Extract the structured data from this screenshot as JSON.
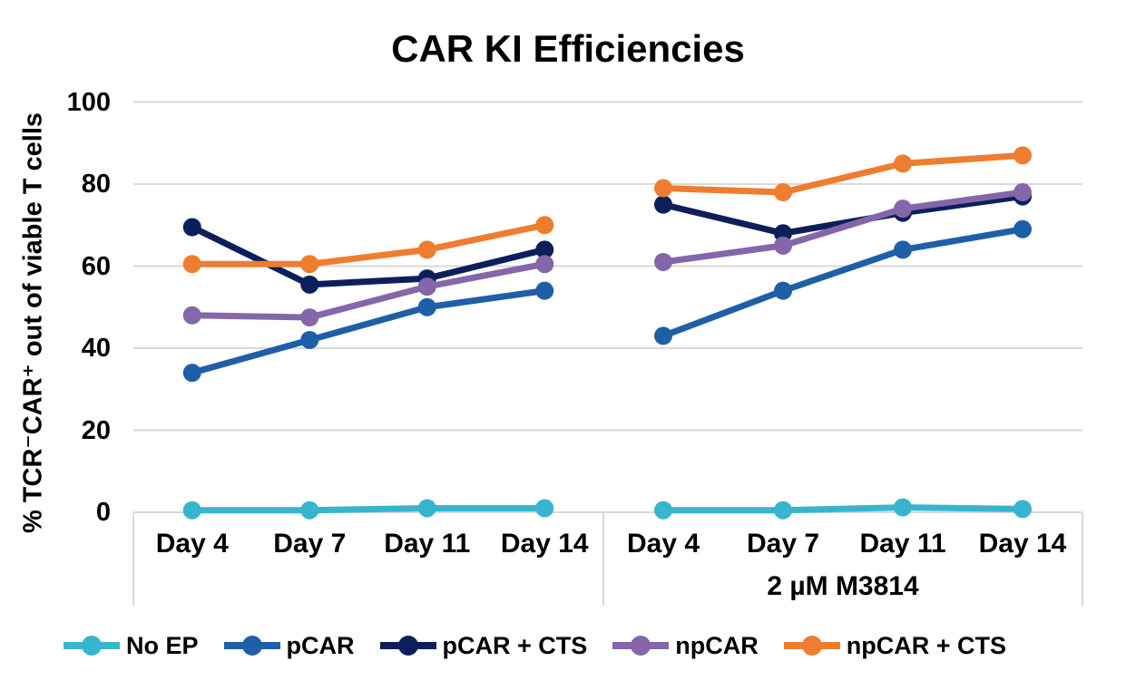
{
  "chart_data": {
    "type": "line",
    "title": "CAR KI Efficiencies",
    "ylabel": "% TCR⁻CAR⁺ out of viable T cells",
    "xlabel": "",
    "ylim": [
      0,
      100
    ],
    "yticks": [
      0,
      20,
      40,
      60,
      80,
      100
    ],
    "grid": "horizontal-only",
    "legend_position": "bottom",
    "categories": [
      "Day 4",
      "Day 7",
      "Day 11",
      "Day 14"
    ],
    "panels": [
      {
        "label": "",
        "series": [
          {
            "name": "No EP",
            "color": "#38b5ce",
            "values": [
              0.5,
              0.5,
              1,
              1
            ]
          },
          {
            "name": "pCAR",
            "color": "#1f5fa7",
            "values": [
              34,
              42,
              50,
              54
            ]
          },
          {
            "name": "pCAR + CTS",
            "color": "#0d1f5b",
            "values": [
              69.5,
              55.5,
              57,
              64
            ]
          },
          {
            "name": "npCAR",
            "color": "#8566aa",
            "values": [
              48,
              47.5,
              55,
              60.5
            ]
          },
          {
            "name": "npCAR + CTS",
            "color": "#ee7d30",
            "values": [
              60.5,
              60.5,
              64,
              70
            ]
          }
        ]
      },
      {
        "label": "2 µM M3814",
        "series": [
          {
            "name": "No EP",
            "color": "#38b5ce",
            "values": [
              0.5,
              0.5,
              1.2,
              0.8
            ]
          },
          {
            "name": "pCAR",
            "color": "#1f5fa7",
            "values": [
              43,
              54,
              64,
              69
            ]
          },
          {
            "name": "pCAR + CTS",
            "color": "#0d1f5b",
            "values": [
              75,
              68,
              73,
              77
            ]
          },
          {
            "name": "npCAR",
            "color": "#8566aa",
            "values": [
              61,
              65,
              74,
              78
            ]
          },
          {
            "name": "npCAR + CTS",
            "color": "#ee7d30",
            "values": [
              79,
              78,
              85,
              87
            ]
          }
        ]
      }
    ],
    "colors": {
      "gridline": "#d9d9d9",
      "axis_box": "#d9d9d9",
      "text": "#000000",
      "background": "#ffffff"
    }
  }
}
